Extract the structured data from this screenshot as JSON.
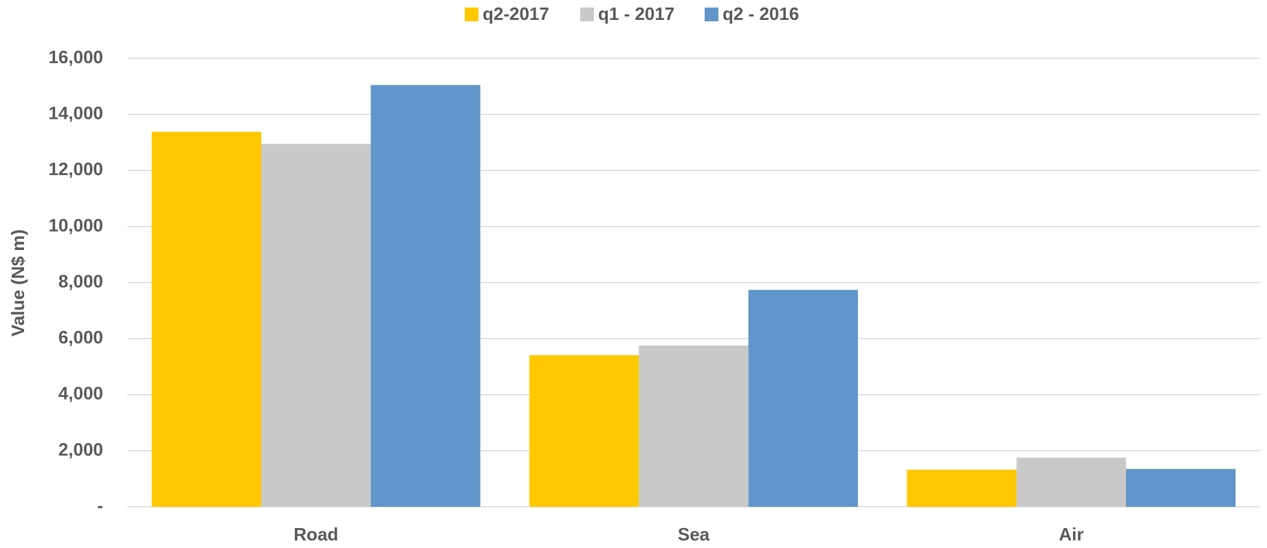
{
  "chart_data": {
    "type": "bar",
    "y_label": "Value (N$ m)",
    "categories": [
      "Road",
      "Sea",
      "Air"
    ],
    "series": [
      {
        "name": "q2-2017",
        "color": "#ffc800",
        "values": [
          13380,
          5410,
          1325
        ]
      },
      {
        "name": "q1 - 2017",
        "color": "#c9c9c9",
        "values": [
          12950,
          5755,
          1755
        ]
      },
      {
        "name": "q2 - 2016",
        "color": "#6096c9",
        "values": [
          15050,
          7740,
          1350
        ]
      }
    ],
    "ylim": [
      0,
      16000
    ],
    "yticks": [
      {
        "value": 0,
        "label": "-"
      },
      {
        "value": 2000,
        "label": "2,000"
      },
      {
        "value": 4000,
        "label": "4,000"
      },
      {
        "value": 6000,
        "label": "6,000"
      },
      {
        "value": 8000,
        "label": "8,000"
      },
      {
        "value": 10000,
        "label": "10,000"
      },
      {
        "value": 12000,
        "label": "12,000"
      },
      {
        "value": 14000,
        "label": "14,000"
      },
      {
        "value": 16000,
        "label": "16,000"
      }
    ],
    "grid": true,
    "legend": "top"
  }
}
